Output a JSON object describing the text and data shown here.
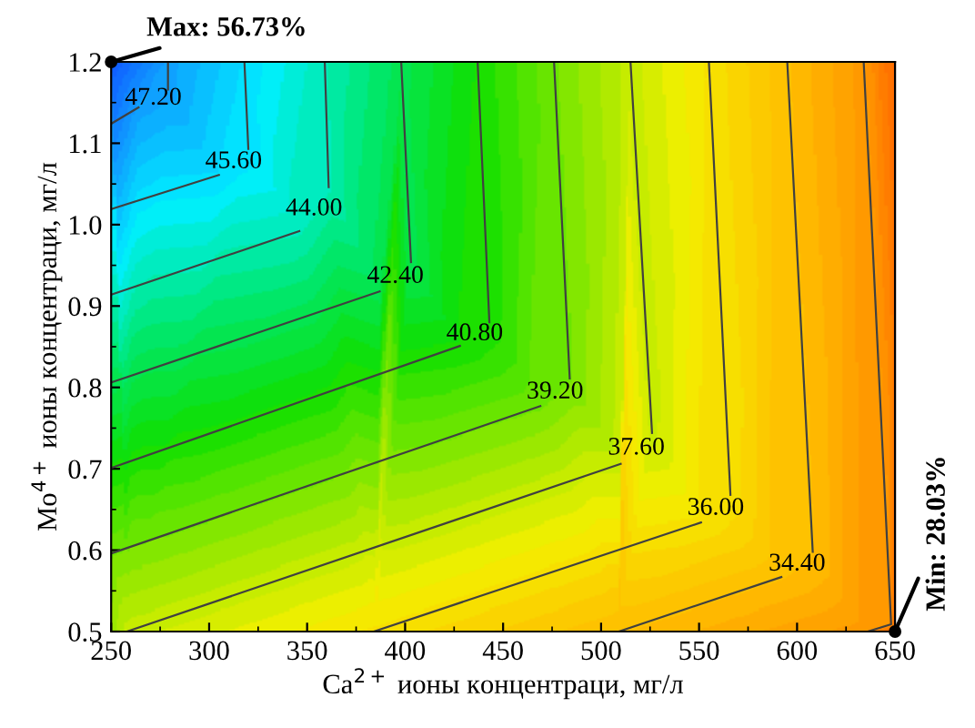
{
  "chart_data": {
    "type": "line",
    "xlabel": "Ca$^{2+}$ ионы концентраци, мг/л",
    "ylabel": "Mo$^{4+}$ ионы концентраци, мг/л",
    "xlim": [
      250,
      650
    ],
    "ylim": [
      0.5,
      1.2
    ],
    "xticks": [
      250,
      300,
      350,
      400,
      450,
      500,
      550,
      600,
      650
    ],
    "yticks": [
      0.5,
      0.6,
      0.7,
      0.8,
      0.9,
      {
        "value": 1.0,
        "label": "1.0"
      },
      1.1,
      1.2
    ],
    "grid": false,
    "legend": false,
    "marker": "none",
    "line_style": "solid",
    "series": [
      {
        "name": "47.20",
        "color": "#404040",
        "x": [
          250,
          264,
          279,
          279
        ],
        "values": [
          1.124,
          1.144,
          1.166,
          1.2
        ]
      },
      {
        "name": "45.60",
        "color": "#404040",
        "x": [
          250,
          305,
          320,
          318
        ],
        "values": [
          1.019,
          1.061,
          1.093,
          1.2
        ]
      },
      {
        "name": "44.00",
        "color": "#404040",
        "x": [
          250,
          346,
          361,
          359
        ],
        "values": [
          0.914,
          0.992,
          1.046,
          1.2
        ]
      },
      {
        "name": "42.40",
        "color": "#404040",
        "x": [
          250,
          387,
          403,
          398
        ],
        "values": [
          0.806,
          0.918,
          0.954,
          1.2
        ]
      },
      {
        "name": "40.80",
        "color": "#404040",
        "x": [
          250,
          428,
          443,
          437
        ],
        "values": [
          0.701,
          0.851,
          0.88,
          1.2
        ]
      },
      {
        "name": "39.20",
        "color": "#404040",
        "x": [
          250,
          469,
          484,
          476
        ],
        "values": [
          0.596,
          0.777,
          0.811,
          1.2
        ]
      },
      {
        "name": "37.60",
        "color": "#404040",
        "x": [
          258,
          510,
          526,
          515
        ],
        "values": [
          0.5,
          0.706,
          0.744,
          1.2
        ]
      },
      {
        "name": "36.00",
        "color": "#404040",
        "x": [
          384,
          551,
          566,
          555
        ],
        "values": [
          0.5,
          0.634,
          0.668,
          1.2
        ]
      },
      {
        "name": "34.40",
        "color": "#404040",
        "x": [
          509,
          592,
          608,
          595
        ],
        "values": [
          0.5,
          0.567,
          0.598,
          1.2
        ]
      },
      {
        "color": "#404040",
        "x": [
          636,
          648,
          634
        ],
        "values": [
          0.5,
          0.509,
          1.2
        ]
      }
    ],
    "annotations": [
      {
        "text": "Max: 56.73%",
        "x": 250,
        "y": 1.2
      },
      {
        "text": "Min: 28.03%",
        "x": 650,
        "y": 0.5
      }
    ]
  }
}
